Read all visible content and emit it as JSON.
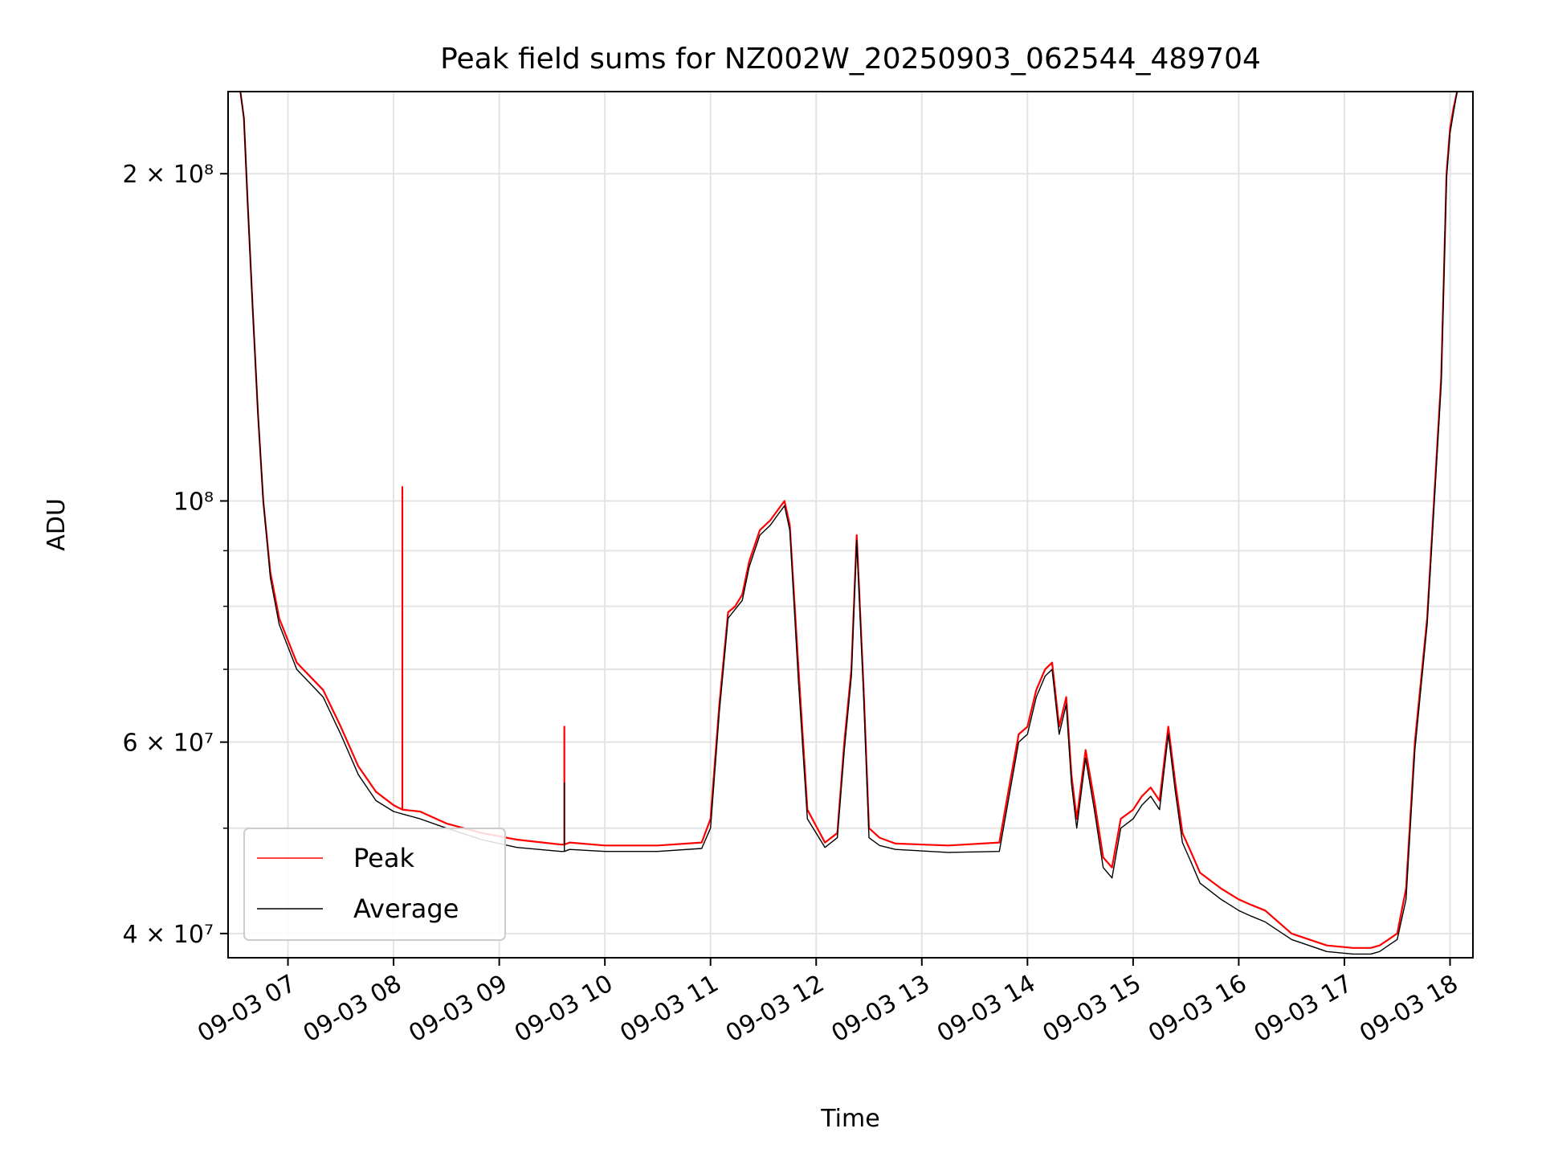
{
  "chart_data": {
    "type": "line",
    "title": "Peak field sums for NZ002W_20250903_062544_489704",
    "xlabel": "Time",
    "ylabel": "ADU",
    "y_scale": "log",
    "ylim": [
      38000000,
      238000000
    ],
    "xlim": [
      "2025-09-03 06:26",
      "2025-09-03 18:13"
    ],
    "grid": true,
    "legend_position": "lower left",
    "x_ticks": [
      {
        "label": "09-03 07",
        "time": "2025-09-03 07:00"
      },
      {
        "label": "09-03 08",
        "time": "2025-09-03 08:00"
      },
      {
        "label": "09-03 09",
        "time": "2025-09-03 09:00"
      },
      {
        "label": "09-03 10",
        "time": "2025-09-03 10:00"
      },
      {
        "label": "09-03 11",
        "time": "2025-09-03 11:00"
      },
      {
        "label": "09-03 12",
        "time": "2025-09-03 12:00"
      },
      {
        "label": "09-03 13",
        "time": "2025-09-03 13:00"
      },
      {
        "label": "09-03 14",
        "time": "2025-09-03 14:00"
      },
      {
        "label": "09-03 15",
        "time": "2025-09-03 15:00"
      },
      {
        "label": "09-03 16",
        "time": "2025-09-03 16:00"
      },
      {
        "label": "09-03 17",
        "time": "2025-09-03 17:00"
      },
      {
        "label": "09-03 18",
        "time": "2025-09-03 18:00"
      }
    ],
    "y_ticks": [
      {
        "label": "4 × 10⁷",
        "value": 40000000
      },
      {
        "label": "6 × 10⁷",
        "value": 60000000
      },
      {
        "label": "10⁸",
        "value": 100000000
      },
      {
        "label": "2 × 10⁸",
        "value": 200000000
      }
    ],
    "series": [
      {
        "name": "Peak",
        "color": "#ff0000",
        "x": [
          "2025-09-03 06:33",
          "2025-09-03 06:35",
          "2025-09-03 06:37",
          "2025-09-03 06:40",
          "2025-09-03 06:43",
          "2025-09-03 06:46",
          "2025-09-03 06:50",
          "2025-09-03 06:55",
          "2025-09-03 07:05",
          "2025-09-03 07:20",
          "2025-09-03 07:30",
          "2025-09-03 07:40",
          "2025-09-03 07:50",
          "2025-09-03 08:00",
          "2025-09-03 08:05",
          "2025-09-03 08:05",
          "2025-09-03 08:05",
          "2025-09-03 08:15",
          "2025-09-03 08:30",
          "2025-09-03 08:50",
          "2025-09-03 09:10",
          "2025-09-03 09:35",
          "2025-09-03 09:37",
          "2025-09-03 09:37",
          "2025-09-03 09:37",
          "2025-09-03 09:40",
          "2025-09-03 10:00",
          "2025-09-03 10:30",
          "2025-09-03 10:55",
          "2025-09-03 11:00",
          "2025-09-03 11:05",
          "2025-09-03 11:10",
          "2025-09-03 11:14",
          "2025-09-03 11:18",
          "2025-09-03 11:22",
          "2025-09-03 11:28",
          "2025-09-03 11:34",
          "2025-09-03 11:38",
          "2025-09-03 11:42",
          "2025-09-03 11:45",
          "2025-09-03 11:50",
          "2025-09-03 11:55",
          "2025-09-03 12:05",
          "2025-09-03 12:12",
          "2025-09-03 12:16",
          "2025-09-03 12:20",
          "2025-09-03 12:23",
          "2025-09-03 12:27",
          "2025-09-03 12:30",
          "2025-09-03 12:36",
          "2025-09-03 12:45",
          "2025-09-03 13:15",
          "2025-09-03 13:44",
          "2025-09-03 13:50",
          "2025-09-03 13:55",
          "2025-09-03 14:00",
          "2025-09-03 14:05",
          "2025-09-03 14:10",
          "2025-09-03 14:14",
          "2025-09-03 14:18",
          "2025-09-03 14:22",
          "2025-09-03 14:25",
          "2025-09-03 14:28",
          "2025-09-03 14:33",
          "2025-09-03 14:38",
          "2025-09-03 14:43",
          "2025-09-03 14:48",
          "2025-09-03 14:53",
          "2025-09-03 15:00",
          "2025-09-03 15:05",
          "2025-09-03 15:10",
          "2025-09-03 15:15",
          "2025-09-03 15:20",
          "2025-09-03 15:24",
          "2025-09-03 15:28",
          "2025-09-03 15:33",
          "2025-09-03 15:38",
          "2025-09-03 15:50",
          "2025-09-03 16:00",
          "2025-09-03 16:07",
          "2025-09-03 16:15",
          "2025-09-03 16:30",
          "2025-09-03 16:50",
          "2025-09-03 17:05",
          "2025-09-03 17:15",
          "2025-09-03 17:20",
          "2025-09-03 17:25",
          "2025-09-03 17:30",
          "2025-09-03 17:35",
          "2025-09-03 17:40",
          "2025-09-03 17:47",
          "2025-09-03 17:55",
          "2025-09-03 17:58",
          "2025-09-03 18:00",
          "2025-09-03 18:02",
          "2025-09-03 18:04"
        ],
        "y": [
          238000000,
          225000000,
          190000000,
          150000000,
          120000000,
          100000000,
          86000000,
          78000000,
          71000000,
          67000000,
          62000000,
          57000000,
          54000000,
          52500000,
          52000000,
          103000000,
          52000000,
          51800000,
          50500000,
          49500000,
          48800000,
          48300000,
          48300000,
          62000000,
          48300000,
          48500000,
          48200000,
          48200000,
          48500000,
          51000000,
          65000000,
          79000000,
          80000000,
          82000000,
          88000000,
          94000000,
          96000000,
          98000000,
          100000000,
          95000000,
          70000000,
          52000000,
          48500000,
          49500000,
          60000000,
          70000000,
          93000000,
          67000000,
          50000000,
          49000000,
          48400000,
          48200000,
          48500000,
          55000000,
          61000000,
          62000000,
          67000000,
          70000000,
          71000000,
          62000000,
          66000000,
          56000000,
          51000000,
          59000000,
          53000000,
          47000000,
          46000000,
          51000000,
          52000000,
          53500000,
          54500000,
          53000000,
          62000000,
          55000000,
          49500000,
          47500000,
          45500000,
          44000000,
          43000000,
          42500000,
          42000000,
          40000000,
          39000000,
          38800000,
          38800000,
          39000000,
          39500000,
          40000000,
          44000000,
          60000000,
          78000000,
          130000000,
          200000000,
          220000000,
          230000000,
          238000000
        ]
      },
      {
        "name": "Average",
        "color": "#000000",
        "x": [
          "2025-09-03 06:33",
          "2025-09-03 06:35",
          "2025-09-03 06:37",
          "2025-09-03 06:40",
          "2025-09-03 06:43",
          "2025-09-03 06:46",
          "2025-09-03 06:50",
          "2025-09-03 06:55",
          "2025-09-03 07:05",
          "2025-09-03 07:20",
          "2025-09-03 07:30",
          "2025-09-03 07:40",
          "2025-09-03 07:50",
          "2025-09-03 08:00",
          "2025-09-03 08:15",
          "2025-09-03 08:30",
          "2025-09-03 08:50",
          "2025-09-03 09:10",
          "2025-09-03 09:35",
          "2025-09-03 09:37",
          "2025-09-03 09:37",
          "2025-09-03 09:37",
          "2025-09-03 09:40",
          "2025-09-03 10:00",
          "2025-09-03 10:30",
          "2025-09-03 10:55",
          "2025-09-03 11:00",
          "2025-09-03 11:05",
          "2025-09-03 11:10",
          "2025-09-03 11:14",
          "2025-09-03 11:18",
          "2025-09-03 11:22",
          "2025-09-03 11:28",
          "2025-09-03 11:34",
          "2025-09-03 11:38",
          "2025-09-03 11:42",
          "2025-09-03 11:45",
          "2025-09-03 11:50",
          "2025-09-03 11:55",
          "2025-09-03 12:05",
          "2025-09-03 12:12",
          "2025-09-03 12:16",
          "2025-09-03 12:20",
          "2025-09-03 12:23",
          "2025-09-03 12:27",
          "2025-09-03 12:30",
          "2025-09-03 12:36",
          "2025-09-03 12:45",
          "2025-09-03 13:15",
          "2025-09-03 13:44",
          "2025-09-03 13:50",
          "2025-09-03 13:55",
          "2025-09-03 14:00",
          "2025-09-03 14:05",
          "2025-09-03 14:10",
          "2025-09-03 14:14",
          "2025-09-03 14:18",
          "2025-09-03 14:22",
          "2025-09-03 14:25",
          "2025-09-03 14:28",
          "2025-09-03 14:33",
          "2025-09-03 14:38",
          "2025-09-03 14:43",
          "2025-09-03 14:48",
          "2025-09-03 14:53",
          "2025-09-03 15:00",
          "2025-09-03 15:05",
          "2025-09-03 15:10",
          "2025-09-03 15:15",
          "2025-09-03 15:20",
          "2025-09-03 15:24",
          "2025-09-03 15:28",
          "2025-09-03 15:33",
          "2025-09-03 15:38",
          "2025-09-03 15:50",
          "2025-09-03 16:00",
          "2025-09-03 16:07",
          "2025-09-03 16:15",
          "2025-09-03 16:30",
          "2025-09-03 16:50",
          "2025-09-03 17:05",
          "2025-09-03 17:15",
          "2025-09-03 17:20",
          "2025-09-03 17:25",
          "2025-09-03 17:30",
          "2025-09-03 17:35",
          "2025-09-03 17:40",
          "2025-09-03 17:47",
          "2025-09-03 17:55",
          "2025-09-03 17:58",
          "2025-09-03 18:00",
          "2025-09-03 18:02",
          "2025-09-03 18:04"
        ],
        "y": [
          238000000,
          225000000,
          190000000,
          150000000,
          120000000,
          100000000,
          85000000,
          77000000,
          70000000,
          66000000,
          61000000,
          56000000,
          53000000,
          51800000,
          51000000,
          50000000,
          48800000,
          48000000,
          47600000,
          47600000,
          55000000,
          47600000,
          47800000,
          47600000,
          47600000,
          47900000,
          50000000,
          64000000,
          78000000,
          79500000,
          81000000,
          87000000,
          93000000,
          95000000,
          97000000,
          99000000,
          94000000,
          68000000,
          51000000,
          48000000,
          49000000,
          59000000,
          69000000,
          92000000,
          66000000,
          49000000,
          48200000,
          47800000,
          47500000,
          47600000,
          54000000,
          60000000,
          61000000,
          66000000,
          69000000,
          70000000,
          61000000,
          65000000,
          55000000,
          50000000,
          58000000,
          52000000,
          46000000,
          45000000,
          50000000,
          51000000,
          52500000,
          53500000,
          52000000,
          61000000,
          54000000,
          48500000,
          46500000,
          44500000,
          43000000,
          42000000,
          41500000,
          41000000,
          39500000,
          38500000,
          38300000,
          38300000,
          38500000,
          39000000,
          39500000,
          43000000,
          59000000,
          77000000,
          128000000,
          198000000,
          218000000,
          228000000,
          238000000
        ]
      }
    ]
  }
}
